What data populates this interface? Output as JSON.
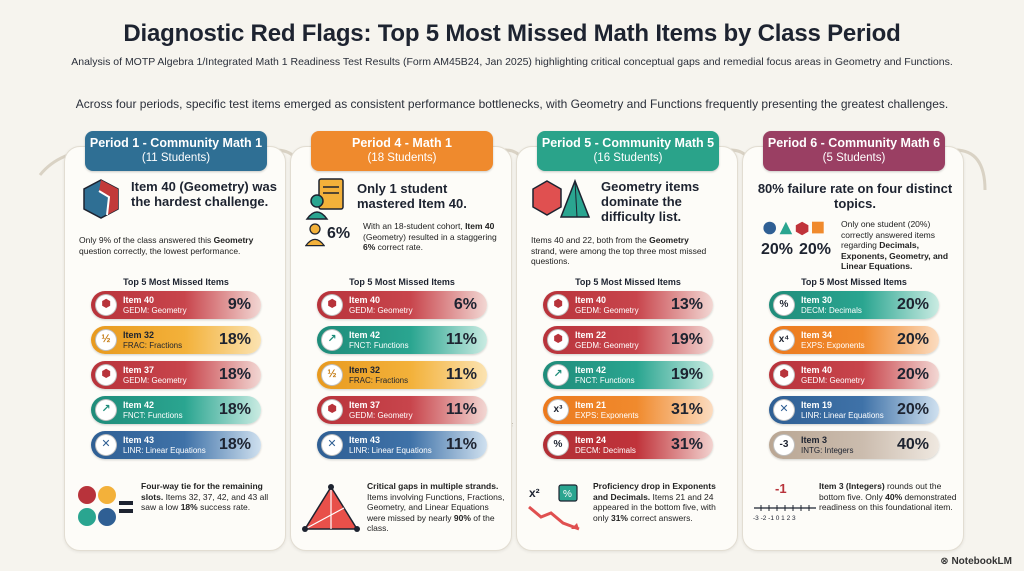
{
  "title": "Diagnostic Red Flags: Top 5 Most Missed Math Items by Class Period",
  "subtitle": "Analysis of MOTP Algebra 1/Integrated Math 1 Readiness Test Results (Form AM45B24, Jan 2025) highlighting critical conceptual gaps and remedial focus areas in Geometry and Functions.",
  "intro": "Across four periods, specific test items emerged as consistent performance bottlenecks, with Geometry and Functions frequently presenting the greatest challenges.",
  "list_title": "Top 5 Most Missed Items",
  "brand": "NotebookLM",
  "colors": {
    "p1": "#2f6f94",
    "p4": "#ef8a2d",
    "p5": "#2aa38a",
    "p6": "#9a3f63",
    "geom": "#b8333b",
    "frac": "#f3b13a",
    "fnct": "#2aa590",
    "linr": "#2f5f94",
    "decm": "#c0333a",
    "exps": "#f08a2d",
    "intg": "#c8b7a6"
  },
  "periods": [
    {
      "header1": "Period 1 - Community Math 1",
      "header2": "(11 Students)",
      "hero_head": "Item 40 (Geometry) was the hardest challenge.",
      "hero_text_a": "Only 9% of the class answered this ",
      "hero_text_b": "Geometry",
      "hero_text_c": " question correctly, the lowest performance.",
      "items": [
        {
          "item": "Item 40",
          "strand": "GEDM: Geometry",
          "value": "9%"
        },
        {
          "item": "Item 32",
          "strand": "FRAC: Fractions",
          "value": "18%"
        },
        {
          "item": "Item 37",
          "strand": "GEDM: Geometry",
          "value": "18%"
        },
        {
          "item": "Item 42",
          "strand": "FNCT: Functions",
          "value": "18%"
        },
        {
          "item": "Item 43",
          "strand": "LINR: Linear Equations",
          "value": "18%"
        }
      ],
      "foot_a": "Four-way tie for the remaining slots.",
      "foot_b": " Items 32, 37, 42, and 43 all saw a low ",
      "foot_c": "18%",
      "foot_d": " success rate."
    },
    {
      "header1": "Period 4 - Math 1",
      "header2": "(18 Students)",
      "hero_head": "Only 1 student mastered Item 40.",
      "badge": "6%",
      "hero_text_a": "With an 18-student cohort, ",
      "hero_text_b": "Item 40",
      "hero_text_c": " (Geometry) resulted in a staggering ",
      "hero_text_d": "6%",
      "hero_text_e": " correct rate.",
      "items": [
        {
          "item": "Item 40",
          "strand": "GEDM: Geometry",
          "value": "6%"
        },
        {
          "item": "Item 42",
          "strand": "FNCT: Functions",
          "value": "11%"
        },
        {
          "item": "Item 32",
          "strand": "FRAC: Fractions",
          "value": "11%"
        },
        {
          "item": "Item 37",
          "strand": "GEDM: Geometry",
          "value": "11%"
        },
        {
          "item": "Item 43",
          "strand": "LINR: Linear Equations",
          "value": "11%"
        }
      ],
      "foot_a": "Critical gaps in multiple strands.",
      "foot_b": " Items involving Functions, Fractions, Geometry, and Linear Equations were missed by nearly ",
      "foot_c": "90%",
      "foot_d": " of the class."
    },
    {
      "header1": "Period 5 - Community Math 5",
      "header2": "(16 Students)",
      "hero_head": "Geometry items dominate the difficulty list.",
      "hero_text_a": "Items 40 and 22, both from the ",
      "hero_text_b": "Geometry",
      "hero_text_c": " strand, were among the top three most missed questions.",
      "items": [
        {
          "item": "Item 40",
          "strand": "GEDM: Geometry",
          "value": "13%"
        },
        {
          "item": "Item 22",
          "strand": "GEDM: Geometry",
          "value": "19%"
        },
        {
          "item": "Item 42",
          "strand": "FNCT: Functions",
          "value": "19%"
        },
        {
          "item": "Item 21",
          "strand": "EXPS: Exponents",
          "value": "31%"
        },
        {
          "item": "Item 24",
          "strand": "DECM: Decimals",
          "value": "31%"
        }
      ],
      "foot_a": "Proficiency drop in Exponents and Decimals.",
      "foot_b": " Items 21 and 24 appeared in the bottom five, with only ",
      "foot_c": "31%",
      "foot_d": " correct answers."
    },
    {
      "header1": "Period 6 - Community Math 6",
      "header2": "(5 Students)",
      "hero_head": "80% failure rate on four distinct topics.",
      "badge": "20%",
      "badge2": "20%",
      "hero_text_a": "Only one student (20%) correctly answered items regarding ",
      "hero_text_b": "Decimals, Exponents, Geometry, and Linear Equations.",
      "items": [
        {
          "item": "Item 30",
          "strand": "DECM: Decimals",
          "value": "20%"
        },
        {
          "item": "Item 34",
          "strand": "EXPS: Exponents",
          "value": "20%"
        },
        {
          "item": "Item 40",
          "strand": "GEDM: Geometry",
          "value": "20%"
        },
        {
          "item": "Item 19",
          "strand": "LINR: Linear Equations",
          "value": "20%"
        },
        {
          "item": "Item 3",
          "strand": "INTG: Integers",
          "value": "40%"
        }
      ],
      "foot_a": "Item 3 (Integers)",
      "foot_b": " rounds out the bottom five. Only ",
      "foot_c": "40%",
      "foot_d": " demonstrated readiness on this foundational item.",
      "numberline_label": "-1",
      "numberline_ticks": "-3 -2 -1 0 1 2 3"
    }
  ]
}
